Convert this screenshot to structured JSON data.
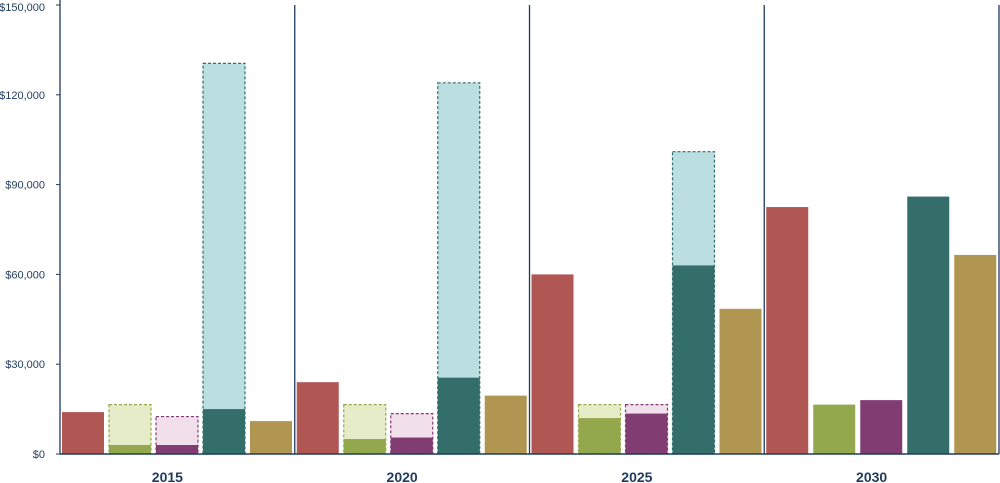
{
  "chart_data": {
    "type": "bar",
    "title": "",
    "xlabel": "",
    "ylabel": "",
    "categories": [
      "2015",
      "2020",
      "2025",
      "2030"
    ],
    "ylim": [
      0,
      150000
    ],
    "yticks": [
      0,
      30000,
      60000,
      90000,
      120000,
      150000
    ],
    "ytick_labels": [
      "$0",
      "$30,000",
      "$60,000",
      "$90,000",
      "$120,000",
      "$150,000"
    ],
    "grid": false,
    "legend": "none",
    "series": [
      {
        "color": "#b05753",
        "values": [
          14000,
          24000,
          60000,
          82500
        ]
      },
      {
        "color": "#93a84d",
        "ghost_color": "#e6ecc8",
        "ghost_stroke": "#93a84d",
        "values": [
          3000,
          5000,
          12000,
          16500
        ],
        "ghost_values": [
          16500,
          16500,
          16500,
          null
        ]
      },
      {
        "color": "#813c72",
        "ghost_color": "#f1dfec",
        "ghost_stroke": "#813c72",
        "values": [
          3000,
          5500,
          13500,
          18000
        ],
        "ghost_values": [
          12500,
          13500,
          16500,
          null
        ]
      },
      {
        "color": "#336e6a",
        "ghost_color": "#bbdfe0",
        "ghost_stroke": "#336e6a",
        "values": [
          15000,
          25500,
          63000,
          86000
        ],
        "ghost_values": [
          130500,
          124000,
          101000,
          null
        ]
      },
      {
        "color": "#b09650",
        "values": [
          11000,
          19500,
          48500,
          66500
        ]
      }
    ]
  }
}
